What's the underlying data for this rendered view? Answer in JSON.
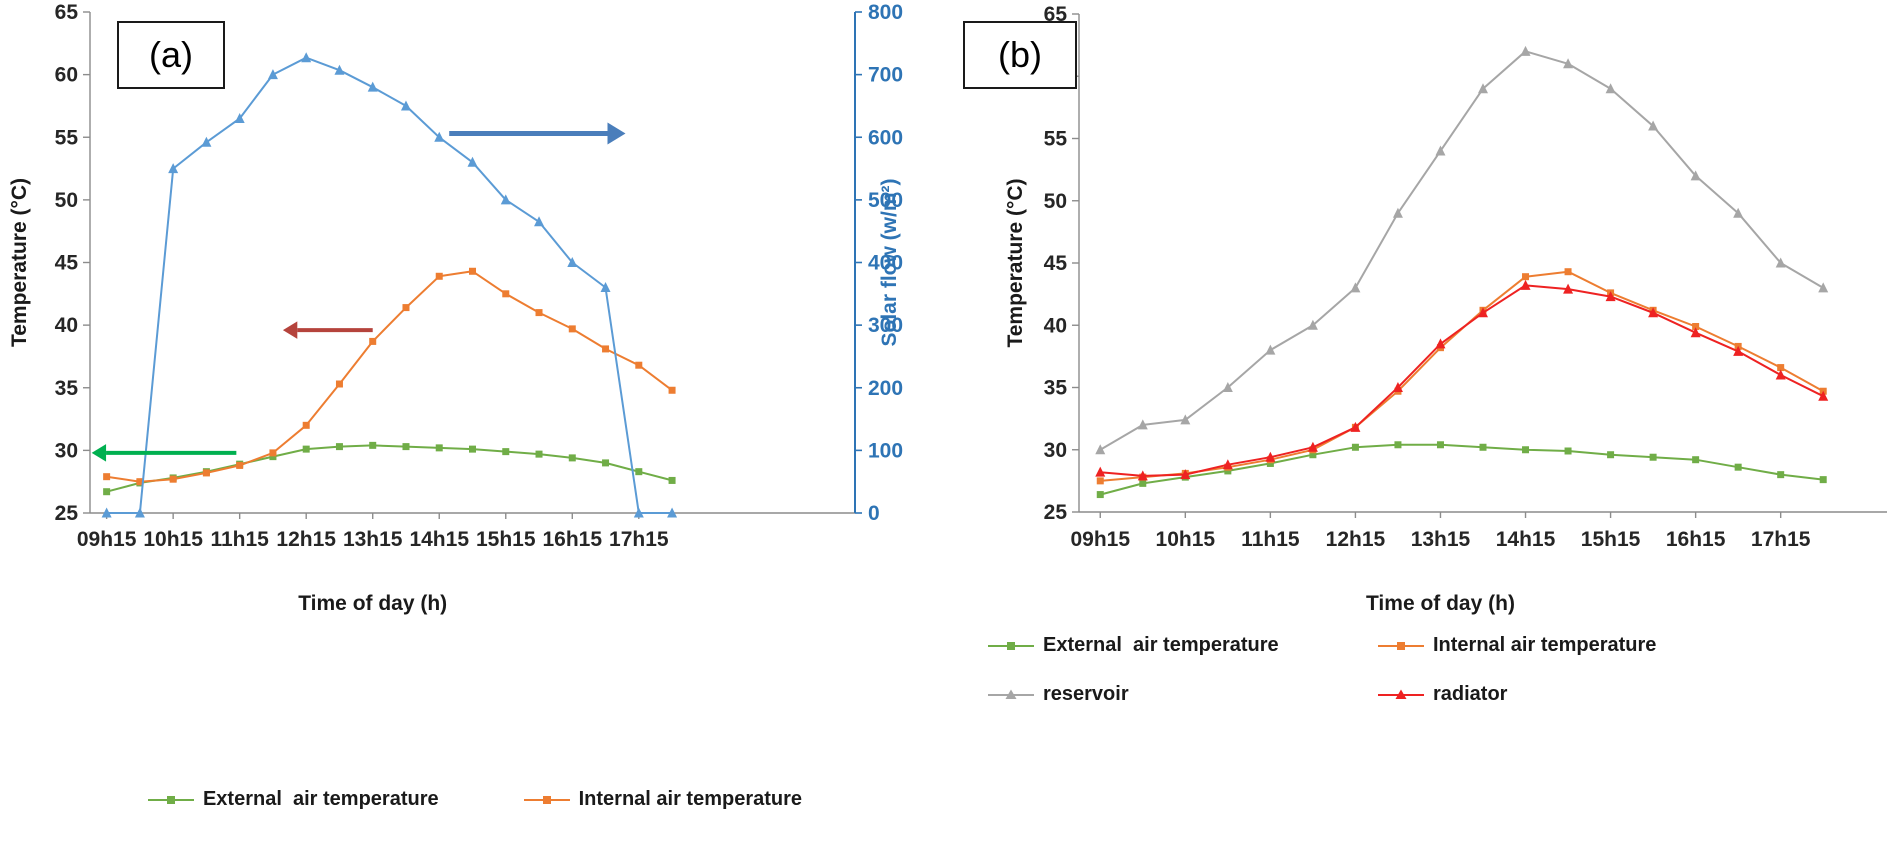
{
  "figure": {
    "background": "#ffffff",
    "text_color": "#262626"
  },
  "chart_data": [
    {
      "id": "chart-a",
      "type": "line",
      "panel_label": "(a)",
      "xlabel": "Time of day (h)",
      "ylabel": "Temperature (°C)",
      "ylabel_right": "Solar flow (w/m²)",
      "x_tick_labels": [
        "09h15",
        "10h15",
        "11h15",
        "12h15",
        "13h15",
        "14h15",
        "15h15",
        "16h15",
        "17h15"
      ],
      "x_points": 18,
      "x_slots": 23,
      "y_left": {
        "min": 25,
        "max": 65,
        "step": 5
      },
      "y_right": {
        "min": 0,
        "max": 800,
        "step": 100
      },
      "axis_color_left": "#8c8c8c",
      "axis_color_right": "#2e74b5",
      "grid": "off",
      "legend_position": "bottom",
      "series": [
        {
          "name": "External  air temperature",
          "color": "#70ad47",
          "marker": "square",
          "axis": "left",
          "in_legend": true,
          "values": [
            26.7,
            27.4,
            27.8,
            28.3,
            28.9,
            29.5,
            30.1,
            30.3,
            30.4,
            30.3,
            30.2,
            30.1,
            29.9,
            29.7,
            29.4,
            29.0,
            28.3,
            27.6
          ]
        },
        {
          "name": "Internal air temperature",
          "color": "#ed7d31",
          "marker": "square",
          "axis": "left",
          "in_legend": true,
          "values": [
            27.9,
            27.5,
            27.7,
            28.2,
            28.8,
            29.8,
            32.0,
            35.3,
            38.7,
            41.4,
            43.9,
            44.3,
            42.5,
            41.0,
            39.7,
            38.1,
            36.8,
            34.8
          ]
        },
        {
          "name": "Solar flow",
          "color": "#5b9bd5",
          "marker": "triangle",
          "axis": "right",
          "in_legend": false,
          "values": [
            0,
            0,
            550,
            592,
            630,
            700,
            727,
            707,
            680,
            650,
            600,
            560,
            500,
            465,
            400,
            360,
            0,
            0
          ]
        }
      ],
      "annotations": [
        {
          "name": "external-temperature-left-axis-arrow",
          "color": "#00b050",
          "width": 4,
          "y": 29.8,
          "x_from": 3.9,
          "x_to": -0.45
        },
        {
          "name": "internal-temperature-left-axis-arrow",
          "color": "#b5433c",
          "width": 4,
          "y": 39.6,
          "x_from": 8.0,
          "x_to": 5.3
        },
        {
          "name": "solar-flow-right-axis-arrow",
          "color": "#4a7ebb",
          "width": 5,
          "y": 55.3,
          "x_from": 10.3,
          "x_to": 15.6
        }
      ]
    },
    {
      "id": "chart-b",
      "type": "line",
      "panel_label": "(b)",
      "xlabel": "Time of day (h)",
      "ylabel": "Temperature (°C)",
      "x_tick_labels": [
        "09h15",
        "10h15",
        "11h15",
        "12h15",
        "13h15",
        "14h15",
        "15h15",
        "16h15",
        "17h15"
      ],
      "x_points": 18,
      "x_slots": 19,
      "y_left": {
        "min": 25,
        "max": 65,
        "step": 5
      },
      "axis_color_left": "#8c8c8c",
      "grid": "off",
      "legend_position": "bottom",
      "series": [
        {
          "name": "External  air temperature",
          "color": "#70ad47",
          "marker": "square",
          "axis": "left",
          "in_legend": true,
          "values": [
            26.4,
            27.3,
            27.8,
            28.3,
            28.9,
            29.6,
            30.2,
            30.4,
            30.4,
            30.2,
            30.0,
            29.9,
            29.6,
            29.4,
            29.2,
            28.6,
            28.0,
            27.6
          ]
        },
        {
          "name": "Internal air temperature",
          "color": "#ed7d31",
          "marker": "square",
          "axis": "left",
          "in_legend": true,
          "values": [
            27.5,
            27.8,
            28.1,
            28.6,
            29.2,
            30.0,
            31.8,
            34.7,
            38.2,
            41.2,
            43.9,
            44.3,
            42.6,
            41.2,
            39.9,
            38.3,
            36.6,
            34.7
          ]
        },
        {
          "name": "reservoir",
          "color": "#a6a6a6",
          "marker": "triangle",
          "axis": "left",
          "in_legend": true,
          "values": [
            30.0,
            32.0,
            32.4,
            35.0,
            38.0,
            40.0,
            43.0,
            49.0,
            54.0,
            59.0,
            62.0,
            61.0,
            59.0,
            56.0,
            52.0,
            49.0,
            45.0,
            43.0
          ]
        },
        {
          "name": "radiator",
          "color": "#ee2222",
          "marker": "triangle",
          "axis": "left",
          "in_legend": true,
          "values": [
            28.2,
            27.9,
            28.0,
            28.8,
            29.4,
            30.2,
            31.8,
            35.0,
            38.5,
            41.0,
            43.2,
            42.9,
            42.3,
            41.0,
            39.4,
            37.9,
            36.0,
            34.3
          ]
        }
      ],
      "annotations": []
    }
  ]
}
